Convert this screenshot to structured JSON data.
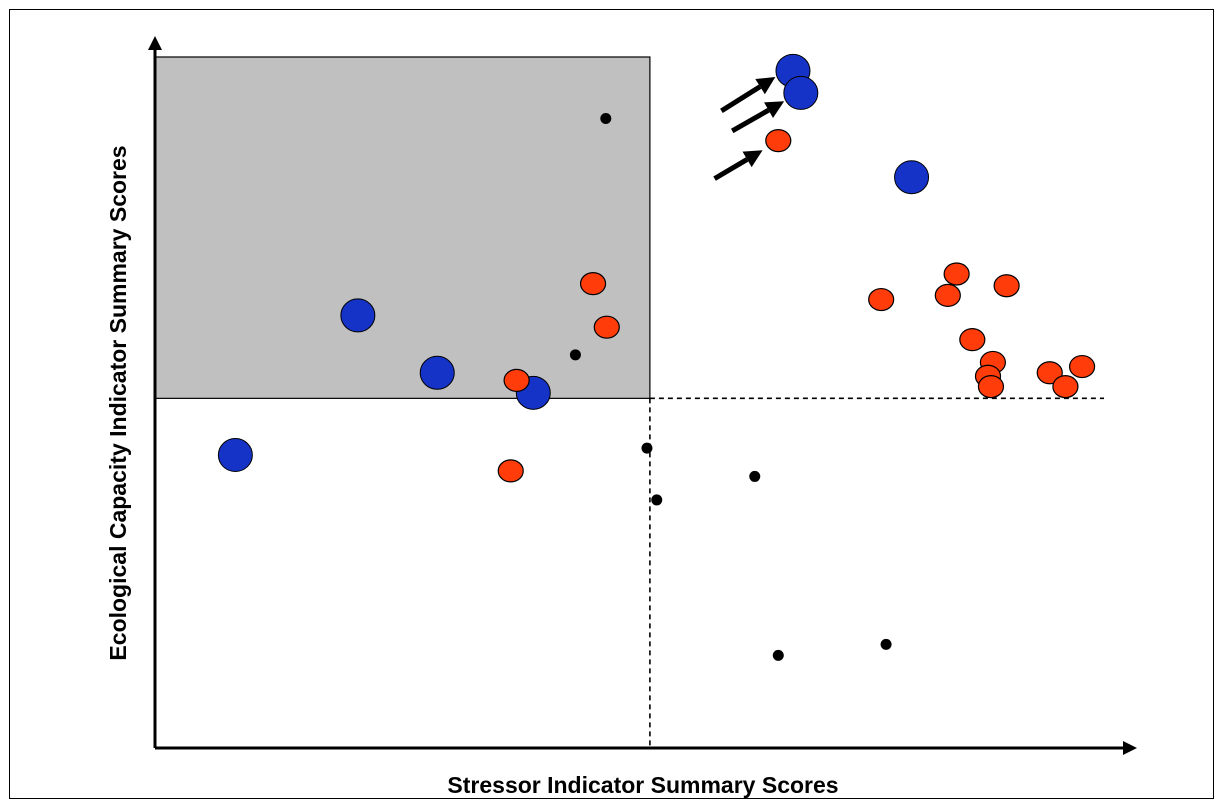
{
  "chart_data": {
    "type": "scatter",
    "title": "",
    "xlabel": "Stressor Indicator Summary Scores",
    "ylabel": "Ecological Capacity Indicator Summary Scores",
    "xlim": [
      0,
      100
    ],
    "ylim": [
      0,
      100
    ],
    "grid": false,
    "tick_labels": false,
    "colors": {
      "blue": "#1633c8",
      "orange": "#ff3c0a",
      "black": "#000000",
      "shade": "#c0c0c0"
    },
    "thresholds": {
      "x": 50.5,
      "y": 50.6
    },
    "shaded_region": {
      "x": [
        0,
        50.5
      ],
      "y": [
        50.6,
        100
      ]
    },
    "series": [
      {
        "color": "blue",
        "marker": "large-circle",
        "points": [
          {
            "x": 8.2,
            "y": 42.4
          },
          {
            "x": 20.7,
            "y": 62.6
          },
          {
            "x": 28.8,
            "y": 54.3
          },
          {
            "x": 38.6,
            "y": 51.4
          },
          {
            "x": 65.1,
            "y": 98.0
          },
          {
            "x": 65.9,
            "y": 94.8
          },
          {
            "x": 77.2,
            "y": 82.6
          }
        ]
      },
      {
        "color": "orange",
        "marker": "medium-circle",
        "points": [
          {
            "x": 36.3,
            "y": 40.1
          },
          {
            "x": 36.9,
            "y": 53.2
          },
          {
            "x": 44.7,
            "y": 67.2
          },
          {
            "x": 46.1,
            "y": 60.9
          },
          {
            "x": 63.6,
            "y": 87.9
          },
          {
            "x": 74.1,
            "y": 64.9
          },
          {
            "x": 80.9,
            "y": 65.5
          },
          {
            "x": 81.8,
            "y": 68.6
          },
          {
            "x": 83.4,
            "y": 59.1
          },
          {
            "x": 86.9,
            "y": 66.9
          },
          {
            "x": 85.5,
            "y": 55.8
          },
          {
            "x": 85.0,
            "y": 53.8
          },
          {
            "x": 85.3,
            "y": 52.3
          },
          {
            "x": 91.3,
            "y": 54.3
          },
          {
            "x": 92.9,
            "y": 52.3
          },
          {
            "x": 94.6,
            "y": 55.2
          }
        ]
      },
      {
        "color": "black",
        "marker": "small-dot",
        "points": [
          {
            "x": 46.0,
            "y": 91.1
          },
          {
            "x": 42.9,
            "y": 56.9
          },
          {
            "x": 50.2,
            "y": 43.4
          },
          {
            "x": 51.2,
            "y": 35.9
          },
          {
            "x": 61.2,
            "y": 39.3
          },
          {
            "x": 63.6,
            "y": 13.4
          },
          {
            "x": 74.6,
            "y": 15.0
          }
        ]
      }
    ],
    "arrows": [
      {
        "from": {
          "x": 57.8,
          "y": 92.2
        },
        "to": {
          "x": 63.3,
          "y": 97.1
        }
      },
      {
        "from": {
          "x": 58.9,
          "y": 89.3
        },
        "to": {
          "x": 64.2,
          "y": 93.6
        }
      },
      {
        "from": {
          "x": 57.1,
          "y": 82.4
        },
        "to": {
          "x": 62.0,
          "y": 86.5
        }
      }
    ]
  }
}
